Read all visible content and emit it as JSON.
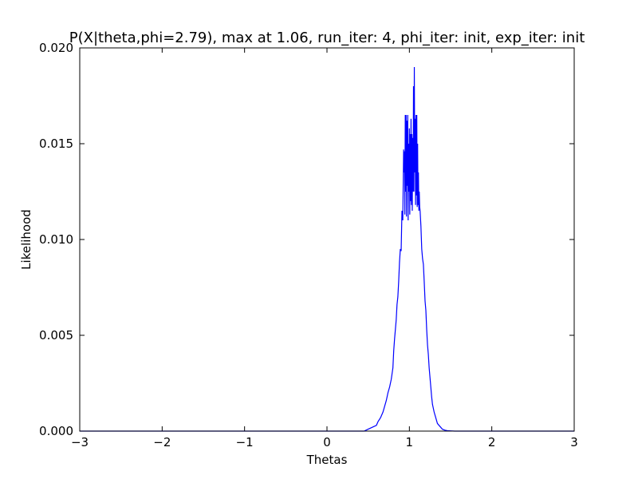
{
  "chart_data": {
    "type": "line",
    "title": "P(X|theta,phi=2.79), max at 1.06, run_iter: 4, phi_iter: init, exp_iter: init",
    "xlabel": "Thetas",
    "ylabel": "Likelihood",
    "xlim": [
      -3,
      3
    ],
    "ylim": [
      0,
      0.02
    ],
    "xticks": [
      -3,
      -2,
      -1,
      0,
      1,
      2,
      3
    ],
    "xtick_labels": [
      "−3",
      "−2",
      "−1",
      "0",
      "1",
      "2",
      "3"
    ],
    "yticks": [
      0,
      0.005,
      0.01,
      0.015,
      0.02
    ],
    "ytick_labels": [
      "0.000",
      "0.005",
      "0.010",
      "0.015",
      "0.020"
    ],
    "grid": false,
    "line_color": "#0000ff",
    "series": [
      {
        "x": [
          -3,
          0.3,
          0.45,
          0.5,
          0.55,
          0.6,
          0.62,
          0.65,
          0.68,
          0.7,
          0.72,
          0.74,
          0.76,
          0.78,
          0.8,
          0.81,
          0.82,
          0.83,
          0.84,
          0.85,
          0.86,
          0.87,
          0.88,
          0.89,
          0.9,
          0.91,
          0.92,
          0.93,
          0.935,
          0.94,
          0.945,
          0.95,
          0.955,
          0.96,
          0.965,
          0.97,
          0.975,
          0.98,
          0.985,
          0.99,
          0.995,
          1.0,
          1.005,
          1.01,
          1.015,
          1.02,
          1.025,
          1.03,
          1.035,
          1.04,
          1.045,
          1.05,
          1.055,
          1.06,
          1.065,
          1.07,
          1.075,
          1.08,
          1.085,
          1.09,
          1.095,
          1.1,
          1.105,
          1.11,
          1.115,
          1.12,
          1.125,
          1.13,
          1.14,
          1.15,
          1.16,
          1.17,
          1.18,
          1.19,
          1.2,
          1.21,
          1.22,
          1.23,
          1.24,
          1.25,
          1.26,
          1.27,
          1.28,
          1.3,
          1.32,
          1.34,
          1.36,
          1.38,
          1.4,
          1.43,
          1.46,
          1.5,
          1.55,
          1.6,
          1.7,
          3
        ],
        "y": [
          0,
          0,
          0,
          0.0001,
          0.0002,
          0.0003,
          0.0005,
          0.0007,
          0.001,
          0.0013,
          0.0016,
          0.002,
          0.0023,
          0.0027,
          0.0033,
          0.0042,
          0.0048,
          0.0053,
          0.0058,
          0.0066,
          0.007,
          0.0078,
          0.0088,
          0.0095,
          0.0094,
          0.0115,
          0.011,
          0.0147,
          0.0135,
          0.0146,
          0.0113,
          0.0165,
          0.0125,
          0.0165,
          0.0112,
          0.0162,
          0.0128,
          0.0165,
          0.011,
          0.015,
          0.0125,
          0.0158,
          0.0113,
          0.0155,
          0.012,
          0.0163,
          0.0118,
          0.0155,
          0.0115,
          0.0153,
          0.0125,
          0.018,
          0.0125,
          0.019,
          0.0135,
          0.0163,
          0.0118,
          0.0165,
          0.0123,
          0.0165,
          0.0117,
          0.015,
          0.0118,
          0.0135,
          0.0115,
          0.0125,
          0.0117,
          0.0115,
          0.0107,
          0.0095,
          0.009,
          0.0087,
          0.0078,
          0.0068,
          0.0063,
          0.0053,
          0.0045,
          0.004,
          0.0033,
          0.0028,
          0.0023,
          0.0018,
          0.0014,
          0.001,
          0.0007,
          0.0004,
          0.0003,
          0.0002,
          0.0001,
          5e-05,
          2e-05,
          1e-05,
          0,
          0,
          0,
          0
        ]
      }
    ]
  }
}
